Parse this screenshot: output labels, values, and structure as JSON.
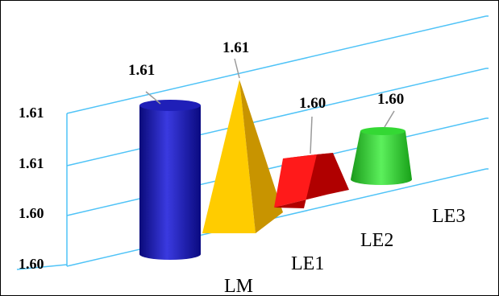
{
  "chart_data": {
    "type": "bar",
    "categories": [
      "LM",
      "LE1",
      "LE2",
      "LE3"
    ],
    "values": [
      1.61,
      1.61,
      1.6,
      1.6
    ],
    "data_labels": [
      "1.61",
      "1.61",
      "1.60",
      "1.60"
    ],
    "y_tick_labels": [
      "1.60",
      "1.60",
      "1.61",
      "1.61"
    ],
    "bar_shapes": [
      "cylinder",
      "pyramid",
      "truncated-pyramid",
      "cone-frustum"
    ],
    "bar_colors": [
      "#1a1aa8",
      "#f2b800",
      "#e01010",
      "#2ec82e"
    ],
    "grid_color": "#4fc3f7",
    "grid": true,
    "legend": "none",
    "title": "",
    "xlabel": "",
    "ylabel": ""
  }
}
